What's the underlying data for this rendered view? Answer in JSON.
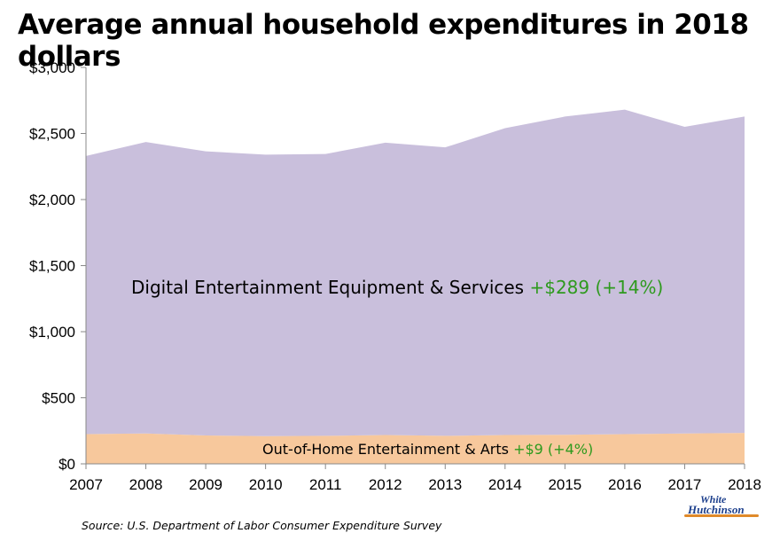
{
  "title": "Average annual household expenditures in 2018 dollars",
  "source": "Source: U.S. Department of Labor Consumer Expenditure Survey",
  "logo": {
    "line1": "White",
    "line2": "Hutchinson"
  },
  "annotations": {
    "digital_label": "Digital Entertainment Equipment & Services",
    "digital_change": "+$289  (+14%)",
    "out_label": "Out-of-Home Entertainment & Arts",
    "out_change": "+$9  (+4%)"
  },
  "colors": {
    "digital": "#c9bfdc",
    "out_of_home": "#f7c89c",
    "change_text": "#2e9a1e",
    "axis": "#888888",
    "logo_blue": "#1c3f8c",
    "logo_orange": "#e08a2a"
  },
  "chart_data": {
    "type": "area",
    "stacked": true,
    "x": [
      "2007",
      "2008",
      "2009",
      "2010",
      "2011",
      "2012",
      "2013",
      "2014",
      "2015",
      "2016",
      "2017",
      "2018"
    ],
    "series": [
      {
        "name": "Out-of-Home Entertainment & Arts",
        "values": [
          225,
          230,
          215,
          210,
          212,
          218,
          212,
          218,
          220,
          225,
          230,
          234
        ]
      },
      {
        "name": "Digital Entertainment Equipment & Services",
        "values": [
          2105,
          2205,
          2150,
          2130,
          2133,
          2212,
          2183,
          2322,
          2408,
          2455,
          2320,
          2394
        ]
      }
    ],
    "ylim": [
      0,
      3000
    ],
    "yticks": [
      0,
      500,
      1000,
      1500,
      2000,
      2500,
      3000
    ],
    "ytick_labels": [
      "$0",
      "$500",
      "$1,000",
      "$1,500",
      "$2,000",
      "$2,500",
      "$3,000"
    ],
    "grid": false,
    "legend": "none"
  }
}
